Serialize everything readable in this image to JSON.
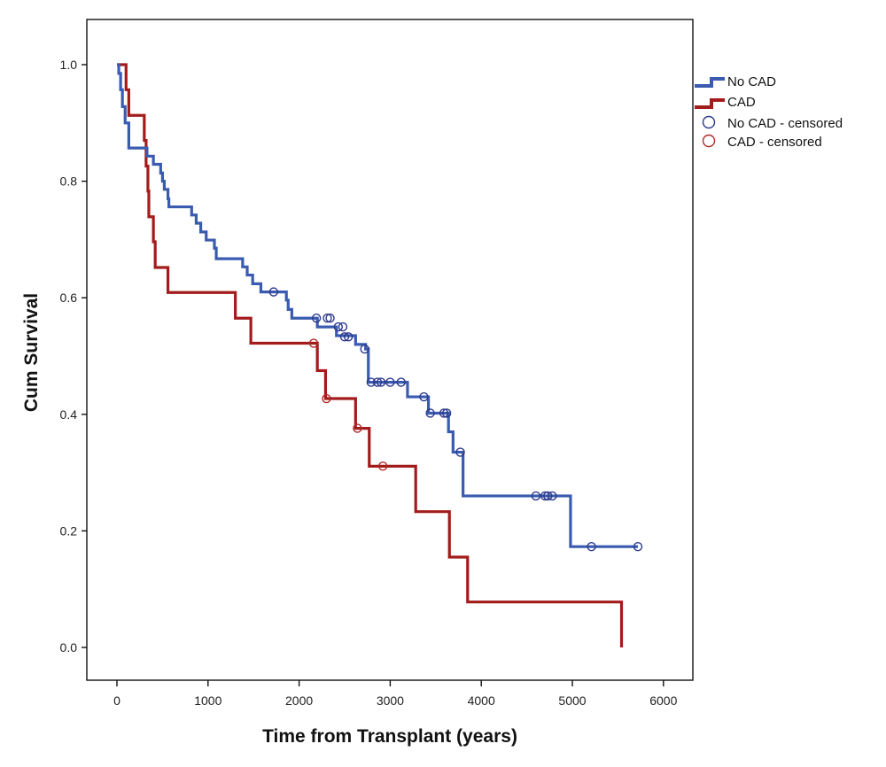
{
  "chart_data": {
    "type": "line",
    "subtype": "kaplan-meier step",
    "title": "",
    "xlabel": "Time from Transplant (years)",
    "ylabel": "Cum Survival",
    "xlim": [
      -300,
      6300
    ],
    "ylim": [
      -0.06,
      1.05
    ],
    "x_ticks": [
      0,
      1000,
      2000,
      3000,
      4000,
      5000,
      6000
    ],
    "x_tick_labels": [
      "0",
      "1000",
      "2000",
      "3000",
      "4000",
      "5000",
      "6000"
    ],
    "y_ticks": [
      0.0,
      0.2,
      0.4,
      0.6,
      0.8,
      1.0
    ],
    "y_tick_labels": [
      "0.0",
      "0.2",
      "0.4",
      "0.6",
      "0.8",
      "1.0"
    ],
    "grid": false,
    "legend_position": "right-top outside",
    "legend": [
      {
        "label": "No CAD",
        "kind": "step-line",
        "color": "#3a5bb0"
      },
      {
        "label": "CAD",
        "kind": "step-line",
        "color": "#a31c1c"
      },
      {
        "label": "No CAD - censored",
        "kind": "circle",
        "color": "#2e3a8c"
      },
      {
        "label": "CAD - censored",
        "kind": "circle",
        "color": "#b02a2a"
      }
    ],
    "series": [
      {
        "name": "No CAD",
        "color": "#3a5bb0",
        "steps": [
          [
            0,
            1.0
          ],
          [
            20,
            0.985
          ],
          [
            40,
            0.957
          ],
          [
            60,
            0.928
          ],
          [
            90,
            0.9
          ],
          [
            130,
            0.857
          ],
          [
            330,
            0.843
          ],
          [
            400,
            0.829
          ],
          [
            480,
            0.814
          ],
          [
            500,
            0.8
          ],
          [
            520,
            0.786
          ],
          [
            560,
            0.77
          ],
          [
            570,
            0.756
          ],
          [
            820,
            0.742
          ],
          [
            870,
            0.728
          ],
          [
            920,
            0.713
          ],
          [
            980,
            0.699
          ],
          [
            1070,
            0.685
          ],
          [
            1090,
            0.667
          ],
          [
            1380,
            0.653
          ],
          [
            1430,
            0.639
          ],
          [
            1490,
            0.624
          ],
          [
            1580,
            0.61
          ],
          [
            1860,
            0.596
          ],
          [
            1880,
            0.58
          ],
          [
            1920,
            0.565
          ],
          [
            2170,
            0.565
          ],
          [
            2200,
            0.55
          ],
          [
            2390,
            0.55
          ],
          [
            2410,
            0.535
          ],
          [
            2620,
            0.52
          ],
          [
            2730,
            0.512
          ],
          [
            2760,
            0.455
          ],
          [
            3190,
            0.43
          ],
          [
            3420,
            0.402
          ],
          [
            3640,
            0.37
          ],
          [
            3690,
            0.335
          ],
          [
            3800,
            0.26
          ],
          [
            4980,
            0.173
          ],
          [
            5720,
            0.173
          ]
        ],
        "censored": [
          [
            1720,
            0.61
          ],
          [
            2190,
            0.565
          ],
          [
            2310,
            0.565
          ],
          [
            2340,
            0.565
          ],
          [
            2430,
            0.55
          ],
          [
            2480,
            0.55
          ],
          [
            2500,
            0.533
          ],
          [
            2540,
            0.533
          ],
          [
            2720,
            0.512
          ],
          [
            2790,
            0.455
          ],
          [
            2860,
            0.455
          ],
          [
            2900,
            0.455
          ],
          [
            3000,
            0.455
          ],
          [
            3120,
            0.455
          ],
          [
            3370,
            0.43
          ],
          [
            3440,
            0.402
          ],
          [
            3590,
            0.402
          ],
          [
            3620,
            0.402
          ],
          [
            3770,
            0.335
          ],
          [
            4600,
            0.26
          ],
          [
            4700,
            0.26
          ],
          [
            4730,
            0.26
          ],
          [
            4780,
            0.26
          ],
          [
            5210,
            0.173
          ],
          [
            5720,
            0.173
          ]
        ]
      },
      {
        "name": "CAD",
        "color": "#a31c1c",
        "steps": [
          [
            0,
            1.0
          ],
          [
            100,
            0.957
          ],
          [
            130,
            0.913
          ],
          [
            300,
            0.87
          ],
          [
            320,
            0.826
          ],
          [
            340,
            0.783
          ],
          [
            350,
            0.739
          ],
          [
            400,
            0.696
          ],
          [
            420,
            0.652
          ],
          [
            560,
            0.609
          ],
          [
            1300,
            0.565
          ],
          [
            1470,
            0.522
          ],
          [
            2200,
            0.475
          ],
          [
            2290,
            0.427
          ],
          [
            2620,
            0.376
          ],
          [
            2770,
            0.311
          ],
          [
            3280,
            0.233
          ],
          [
            3650,
            0.155
          ],
          [
            3850,
            0.078
          ],
          [
            5540,
            0.0
          ]
        ],
        "censored": [
          [
            2160,
            0.522
          ],
          [
            2300,
            0.427
          ],
          [
            2640,
            0.376
          ],
          [
            2920,
            0.311
          ]
        ]
      }
    ]
  }
}
